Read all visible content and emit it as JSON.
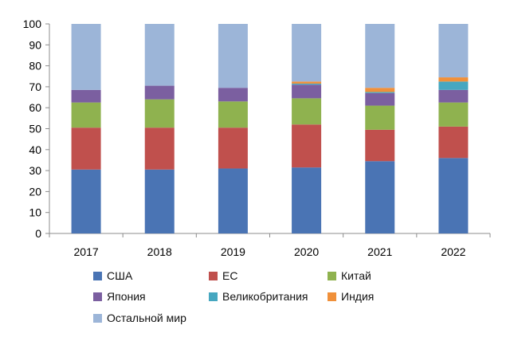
{
  "chart_data": {
    "type": "bar",
    "stacked": true,
    "categories": [
      "2017",
      "2018",
      "2019",
      "2020",
      "2021",
      "2022"
    ],
    "ylim": [
      0,
      100
    ],
    "yticks": [
      0,
      10,
      20,
      30,
      40,
      50,
      60,
      70,
      80,
      90,
      100
    ],
    "grid": false,
    "legend_position": "bottom",
    "series": [
      {
        "name": "США",
        "color": "#4a74b4",
        "values": [
          30.5,
          30.5,
          31,
          31.5,
          34.5,
          36
        ]
      },
      {
        "name": "ЕС",
        "color": "#c0504d",
        "values": [
          20,
          20,
          19.5,
          20.5,
          15,
          15
        ]
      },
      {
        "name": "Китай",
        "color": "#8fb24f",
        "values": [
          12,
          13.5,
          12.5,
          12.5,
          11.5,
          11.5
        ]
      },
      {
        "name": "Япония",
        "color": "#7b5fa0",
        "values": [
          6,
          6.5,
          6.5,
          6.5,
          6,
          6
        ]
      },
      {
        "name": "Великобритания",
        "color": "#46a7c0",
        "values": [
          0,
          0,
          0,
          0.5,
          0.5,
          4
        ]
      },
      {
        "name": "Индия",
        "color": "#f0903a",
        "values": [
          0,
          0,
          0,
          1,
          2,
          2
        ]
      },
      {
        "name": "Остальной мир",
        "color": "#9cb5d8",
        "values": [
          31.5,
          29.5,
          30.5,
          27.5,
          30.5,
          25.5
        ]
      }
    ]
  }
}
